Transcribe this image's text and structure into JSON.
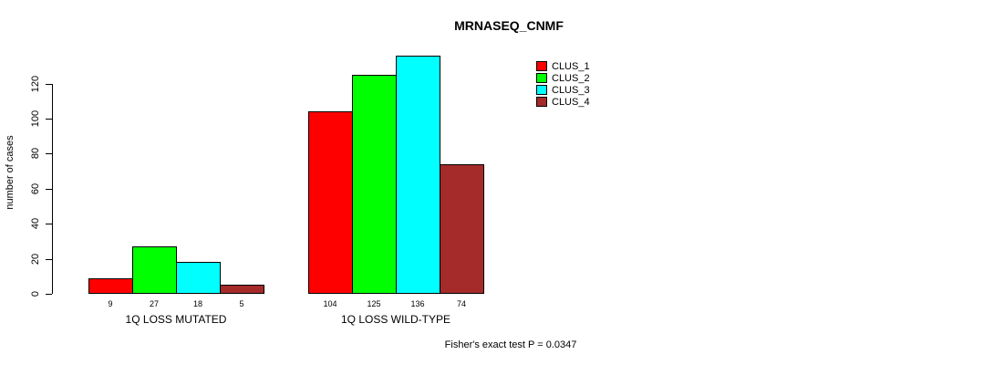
{
  "chart_data": {
    "type": "bar",
    "title": "MRNASEQ_CNMF",
    "xlabel": "",
    "ylabel": "number of cases",
    "ylim": [
      0,
      120
    ],
    "yticks": [
      0,
      20,
      40,
      60,
      80,
      100,
      120
    ],
    "grid": false,
    "legend_position": "top-right",
    "categories": [
      "1Q LOSS MUTATED",
      "1Q LOSS WILD-TYPE"
    ],
    "series": [
      {
        "name": "CLUS_1",
        "color": "#ff0000",
        "values": [
          9,
          104
        ]
      },
      {
        "name": "CLUS_2",
        "color": "#00ff00",
        "values": [
          27,
          125
        ]
      },
      {
        "name": "CLUS_3",
        "color": "#00ffff",
        "values": [
          18,
          136
        ]
      },
      {
        "name": "CLUS_4",
        "color": "#a52a2a",
        "values": [
          5,
          74
        ]
      }
    ],
    "bar_value_labels": [
      [
        "9",
        "27",
        "18",
        "5"
      ],
      [
        "104",
        "125",
        "136",
        "74"
      ]
    ],
    "annotation": "Fisher's exact test P = 0.0347",
    "bar_border_color": "#000000",
    "axis_color": "#000000"
  }
}
